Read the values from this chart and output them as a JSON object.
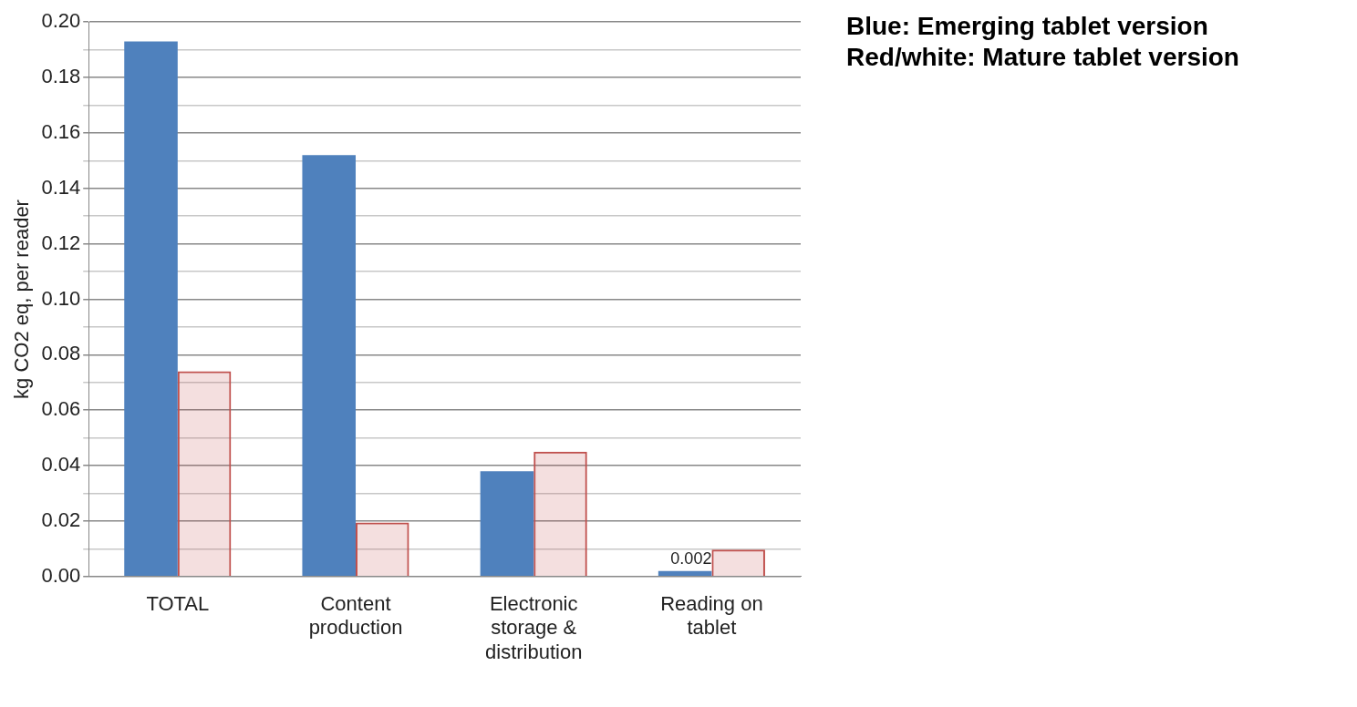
{
  "chart_data": {
    "type": "bar",
    "categories": [
      "TOTAL",
      "Content production",
      "Electronic storage & distribution",
      "Reading on tablet"
    ],
    "series": [
      {
        "color": "#4f81bd",
        "values": [
          0.193,
          0.152,
          0.038,
          0.002
        ],
        "value_labels": [
          null,
          null,
          null,
          "0.002"
        ]
      },
      {
        "color": "#c0504d",
        "values": [
          0.074,
          0.0195,
          0.045,
          0.0097
        ]
      }
    ],
    "ylabel": "kg CO2 eq, per reader",
    "ylim": [
      0,
      0.2
    ],
    "yticks": [
      {
        "value": 0,
        "label": "0.00"
      },
      {
        "value": 0.01,
        "label": null
      },
      {
        "value": 0.02,
        "label": "0.02"
      },
      {
        "value": 0.03,
        "label": null
      },
      {
        "value": 0.04,
        "label": "0.04"
      },
      {
        "value": 0.05,
        "label": null
      },
      {
        "value": 0.06,
        "label": "0.06"
      },
      {
        "value": 0.07,
        "label": null
      },
      {
        "value": 0.08,
        "label": "0.08"
      },
      {
        "value": 0.09,
        "label": null
      },
      {
        "value": 0.1,
        "label": "0.10"
      },
      {
        "value": 0.11,
        "label": null
      },
      {
        "value": 0.12,
        "label": "0.12"
      },
      {
        "value": 0.13,
        "label": null
      },
      {
        "value": 0.14,
        "label": "0.14"
      },
      {
        "value": 0.15,
        "label": null
      },
      {
        "value": 0.16,
        "label": "0.16"
      },
      {
        "value": 0.17,
        "label": null
      },
      {
        "value": 0.18,
        "label": "0.18"
      },
      {
        "value": 0.19,
        "label": null
      },
      {
        "value": 0.2,
        "label": "0.20"
      }
    ],
    "grid": "y",
    "annotations": [
      "Blue: Emerging tablet version",
      "Red/white: Mature tablet version"
    ]
  }
}
